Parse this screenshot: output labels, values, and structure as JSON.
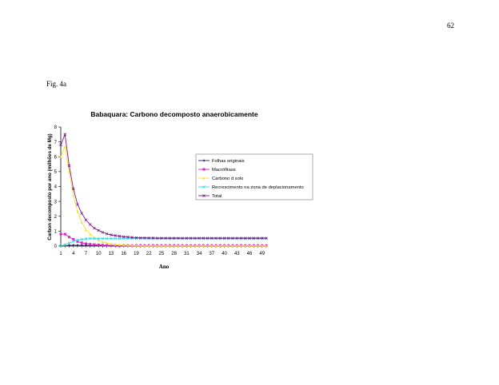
{
  "page": {
    "page_number": "62",
    "figure_label": "Fig. 4a"
  },
  "chart_data": {
    "type": "line",
    "title": "Babaquara: Carbono decomposto anaerobicamente",
    "xlabel": "Ano",
    "ylabel": "Carbon decomposto por ano (milhões de Mg)",
    "ylim": [
      0,
      8
    ],
    "yticks": [
      0,
      1,
      2,
      3,
      4,
      5,
      6,
      7,
      8
    ],
    "xlim": [
      1,
      50
    ],
    "xticks": [
      1,
      4,
      7,
      10,
      13,
      16,
      19,
      22,
      25,
      28,
      31,
      34,
      37,
      40,
      43,
      46,
      49
    ],
    "grid": false,
    "legend_position": "right",
    "x": [
      1,
      2,
      3,
      4,
      5,
      6,
      7,
      8,
      9,
      10,
      11,
      12,
      13,
      14,
      15,
      16,
      17,
      18,
      19,
      20,
      21,
      22,
      23,
      24,
      25,
      26,
      27,
      28,
      29,
      30,
      31,
      32,
      33,
      34,
      35,
      36,
      37,
      38,
      39,
      40,
      41,
      42,
      43,
      44,
      45,
      46,
      47,
      48,
      49,
      50
    ],
    "series": [
      {
        "name": "Folhas originais",
        "color": "#1a1a7a",
        "marker": "diamond",
        "values": [
          0.02,
          0.03,
          0.04,
          0.05,
          0.05,
          0.04,
          0.04,
          0.03,
          0.03,
          0.03,
          0.02,
          0.02,
          0.02,
          0.02,
          0.02,
          0.01,
          0.01,
          0.01,
          0.01,
          0.01,
          0.01,
          0.01,
          0.01,
          0.01,
          0.01,
          0.01,
          0.01,
          0.01,
          0.01,
          0.01,
          0.01,
          0.01,
          0.01,
          0.01,
          0.01,
          0.01,
          0.01,
          0.01,
          0.01,
          0.01,
          0.01,
          0.01,
          0.01,
          0.01,
          0.01,
          0.01,
          0.01,
          0.01,
          0.01,
          0.01
        ]
      },
      {
        "name": "Macrófitass",
        "color": "#e01ecf",
        "marker": "square",
        "values": [
          0.8,
          0.8,
          0.6,
          0.45,
          0.3,
          0.22,
          0.16,
          0.12,
          0.1,
          0.08,
          0.06,
          0.05,
          0.04,
          0.04,
          0.03,
          0.03,
          0.03,
          0.02,
          0.02,
          0.02,
          0.02,
          0.02,
          0.02,
          0.02,
          0.02,
          0.02,
          0.02,
          0.02,
          0.02,
          0.02,
          0.02,
          0.02,
          0.02,
          0.02,
          0.02,
          0.02,
          0.02,
          0.02,
          0.02,
          0.02,
          0.02,
          0.02,
          0.02,
          0.02,
          0.02,
          0.02,
          0.02,
          0.02,
          0.02,
          0.02
        ]
      },
      {
        "name": "Carbono d solo",
        "color": "#f0e030",
        "marker": "triangle",
        "values": [
          6.0,
          6.7,
          5.0,
          3.4,
          2.3,
          1.6,
          1.1,
          0.8,
          0.55,
          0.38,
          0.28,
          0.2,
          0.15,
          0.11,
          0.08,
          0.06,
          0.05,
          0.04,
          0.03,
          0.03,
          0.02,
          0.02,
          0.02,
          0.02,
          0.02,
          0.02,
          0.02,
          0.02,
          0.02,
          0.02,
          0.02,
          0.02,
          0.02,
          0.02,
          0.02,
          0.02,
          0.02,
          0.02,
          0.02,
          0.02,
          0.02,
          0.02,
          0.02,
          0.02,
          0.02,
          0.02,
          0.02,
          0.02,
          0.02,
          0.02
        ]
      },
      {
        "name": "Recrescimento na zona de deplacionamento",
        "color": "#33ddee",
        "marker": "x",
        "values": [
          0.02,
          0.08,
          0.2,
          0.32,
          0.4,
          0.45,
          0.48,
          0.5,
          0.5,
          0.5,
          0.5,
          0.5,
          0.5,
          0.5,
          0.5,
          0.5,
          0.5,
          0.5,
          0.5,
          0.5,
          0.5,
          0.5,
          0.5,
          0.5,
          0.5,
          0.5,
          0.5,
          0.5,
          0.5,
          0.5,
          0.5,
          0.5,
          0.5,
          0.5,
          0.5,
          0.5,
          0.5,
          0.5,
          0.5,
          0.5,
          0.5,
          0.5,
          0.5,
          0.5,
          0.5,
          0.5,
          0.5,
          0.5,
          0.5,
          0.5
        ]
      },
      {
        "name": "Total",
        "color": "#7a1a8a",
        "marker": "x",
        "values": [
          6.8,
          7.5,
          5.4,
          3.85,
          2.8,
          2.2,
          1.75,
          1.45,
          1.2,
          1.05,
          0.92,
          0.82,
          0.75,
          0.7,
          0.66,
          0.62,
          0.6,
          0.58,
          0.56,
          0.55,
          0.55,
          0.54,
          0.54,
          0.53,
          0.53,
          0.53,
          0.53,
          0.53,
          0.53,
          0.53,
          0.53,
          0.53,
          0.53,
          0.53,
          0.53,
          0.53,
          0.53,
          0.53,
          0.53,
          0.53,
          0.53,
          0.53,
          0.53,
          0.53,
          0.53,
          0.53,
          0.53,
          0.53,
          0.53,
          0.53
        ]
      }
    ],
    "baseline_markers": {
      "name": "",
      "color": "#e8880a",
      "values": [
        0,
        0,
        0,
        0,
        0,
        0,
        0,
        0,
        0,
        0,
        0,
        0,
        0,
        0,
        0,
        0,
        0,
        0,
        0,
        0,
        0,
        0,
        0,
        0,
        0,
        0,
        0,
        0,
        0,
        0,
        0,
        0,
        0,
        0,
        0,
        0,
        0,
        0,
        0,
        0,
        0,
        0,
        0,
        0,
        0,
        0,
        0,
        0,
        0,
        0
      ]
    }
  }
}
